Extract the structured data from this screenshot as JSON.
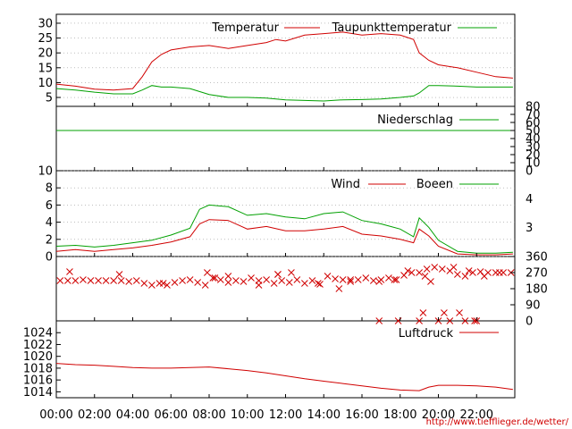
{
  "chart_data": [
    {
      "type": "line",
      "panel": "temperature",
      "title": "",
      "ylim": [
        2,
        33
      ],
      "y_ticks": [
        "5",
        "10",
        "15",
        "20",
        "25",
        "30"
      ],
      "y_tick_values": [
        5,
        10,
        15,
        20,
        25,
        30
      ],
      "legend_placement": "top-right",
      "grid": true,
      "x": [
        0,
        1,
        2,
        3,
        4,
        4.5,
        5,
        5.5,
        6,
        7,
        8,
        9,
        10,
        11,
        11.5,
        12,
        13,
        14,
        15,
        16,
        17,
        18,
        18.7,
        19,
        19.5,
        20,
        21,
        22,
        23,
        23.9
      ],
      "series": [
        {
          "name": "Temperatur",
          "color": "#d00000",
          "values": [
            9.5,
            8.8,
            7.8,
            7.5,
            8.0,
            12,
            17,
            19.5,
            21,
            22,
            22.5,
            21.5,
            22.5,
            23.5,
            24.5,
            24,
            26,
            26.5,
            27,
            26,
            26.5,
            26,
            24.5,
            20,
            17.5,
            16,
            15,
            13.5,
            12,
            11.5
          ]
        },
        {
          "name": "Taupunkttemperatur",
          "color": "#00a000",
          "values": [
            8,
            7.5,
            6.8,
            6.2,
            6.2,
            7.5,
            9,
            8.5,
            8.5,
            8,
            6,
            5,
            5,
            4.8,
            4.5,
            4.2,
            4,
            3.8,
            4.2,
            4.3,
            4.5,
            5,
            5.5,
            6.5,
            9,
            9,
            8.8,
            8.5,
            8.5,
            8.5
          ]
        }
      ]
    },
    {
      "type": "line",
      "panel": "precipitation",
      "title": "",
      "ylim": [
        0,
        80
      ],
      "y_ticks": [
        "0",
        "10",
        "20",
        "30",
        "40",
        "50",
        "60",
        "70",
        "80"
      ],
      "y_tick_values": [
        0,
        10,
        20,
        30,
        40,
        50,
        60,
        70,
        80
      ],
      "axis_side": "right",
      "legend_placement": "top-right",
      "x": [
        0,
        23.9
      ],
      "series": [
        {
          "name": "Niederschlag",
          "color": "#00a000",
          "values": [
            50,
            50
          ]
        }
      ]
    },
    {
      "type": "line",
      "panel": "wind",
      "title": "",
      "ylim": [
        0,
        10
      ],
      "y_ticks": [
        "0",
        "2",
        "4",
        "6",
        "8",
        "10"
      ],
      "y_tick_values": [
        0,
        2,
        4,
        6,
        8,
        10
      ],
      "right_ticks": [
        "3",
        "4"
      ],
      "right_tick_values": [
        3.4,
        6.7
      ],
      "legend_placement": "top-right",
      "grid": true,
      "x": [
        0,
        1,
        2,
        3,
        4,
        5,
        6,
        7,
        7.5,
        8,
        9,
        10,
        11,
        12,
        13,
        14,
        15,
        16,
        17,
        18,
        18.7,
        19,
        19.5,
        20,
        21,
        22,
        23,
        23.9
      ],
      "series": [
        {
          "name": "Wind",
          "color": "#d00000",
          "values": [
            0.6,
            0.8,
            0.6,
            0.8,
            1.0,
            1.3,
            1.7,
            2.3,
            3.8,
            4.3,
            4.2,
            3.2,
            3.5,
            3.0,
            3.0,
            3.2,
            3.5,
            2.6,
            2.4,
            2.0,
            1.6,
            3.2,
            2.4,
            1.2,
            0.3,
            0.2,
            0.2,
            0.3
          ]
        },
        {
          "name": "Boeen",
          "color": "#00a000",
          "values": [
            1.2,
            1.3,
            1.1,
            1.3,
            1.6,
            1.9,
            2.5,
            3.3,
            5.5,
            6.0,
            5.8,
            4.8,
            5.0,
            4.6,
            4.4,
            5.0,
            5.2,
            4.2,
            3.8,
            3.2,
            2.3,
            4.5,
            3.4,
            1.9,
            0.6,
            0.4,
            0.4,
            0.5
          ]
        }
      ]
    },
    {
      "type": "scatter",
      "panel": "wind-direction",
      "title": "",
      "ylim": [
        0,
        360
      ],
      "y_ticks": [
        "0",
        "90",
        "180",
        "270",
        "360"
      ],
      "y_tick_values": [
        0,
        90,
        180,
        270,
        360
      ],
      "axis_side": "right",
      "marker": "x",
      "color": "#d00000",
      "x": [
        0.2,
        0.6,
        1.0,
        1.4,
        1.8,
        2.2,
        2.6,
        3.0,
        3.4,
        3.8,
        4.2,
        4.6,
        5.0,
        5.4,
        5.8,
        6.2,
        6.6,
        7.0,
        7.4,
        7.8,
        8.2,
        8.6,
        9.0,
        9.4,
        9.8,
        10.2,
        10.6,
        11.0,
        11.4,
        11.8,
        12.2,
        12.6,
        13.0,
        13.4,
        13.8,
        14.2,
        14.6,
        15.0,
        15.4,
        15.8,
        16.2,
        16.6,
        17.0,
        17.4,
        17.8,
        18.2,
        18.6,
        19.0,
        19.4,
        19.8,
        20.2,
        20.6,
        21.0,
        21.4,
        21.8,
        22.2,
        22.6,
        23.0,
        23.4,
        23.8,
        7.9,
        9.0,
        11.6,
        12.3,
        14.8,
        16.9,
        18.4,
        19.3,
        20.8,
        21.6,
        23.2,
        0.7,
        3.3,
        5.6,
        8.3,
        10.6,
        13.7,
        15.4,
        17.7,
        19.6,
        22.4,
        11.6,
        16.9,
        17.9,
        19.0,
        20.0,
        20.6,
        21.4,
        21.9,
        22.0,
        19.2,
        20.3,
        21.1
      ],
      "values": [
        225,
        225,
        225,
        230,
        225,
        225,
        225,
        225,
        225,
        220,
        225,
        210,
        200,
        210,
        200,
        215,
        225,
        230,
        215,
        200,
        240,
        230,
        215,
        225,
        220,
        240,
        225,
        230,
        210,
        225,
        215,
        230,
        210,
        225,
        205,
        250,
        235,
        230,
        220,
        230,
        240,
        225,
        230,
        240,
        230,
        255,
        270,
        270,
        290,
        300,
        290,
        280,
        260,
        250,
        270,
        275,
        270,
        270,
        270,
        270,
        270,
        250,
        260,
        270,
        180,
        220,
        280,
        250,
        300,
        280,
        270,
        275,
        260,
        210,
        240,
        200,
        210,
        230,
        230,
        220,
        250,
        260,
        0,
        0,
        0,
        0,
        0,
        0,
        0,
        0,
        45,
        45,
        45
      ]
    },
    {
      "type": "line",
      "panel": "pressure",
      "title": "",
      "ylim": [
        1013,
        1026
      ],
      "y_ticks": [
        "1014",
        "1016",
        "1018",
        "1020",
        "1022",
        "1024"
      ],
      "y_tick_values": [
        1014,
        1016,
        1018,
        1020,
        1022,
        1024
      ],
      "legend_placement": "top-right",
      "x": [
        0,
        1,
        2,
        3,
        4,
        5,
        6,
        7,
        8,
        9,
        10,
        11,
        12,
        13,
        14,
        15,
        16,
        17,
        18,
        19,
        19.5,
        20,
        21,
        22,
        23,
        23.9
      ],
      "series": [
        {
          "name": "Luftdruck",
          "color": "#d00000",
          "values": [
            1018.8,
            1018.6,
            1018.5,
            1018.3,
            1018.1,
            1018.0,
            1018.0,
            1018.1,
            1018.2,
            1017.9,
            1017.6,
            1017.2,
            1016.7,
            1016.2,
            1015.8,
            1015.4,
            1015.0,
            1014.6,
            1014.3,
            1014.2,
            1014.8,
            1015.1,
            1015.1,
            1015.0,
            1014.8,
            1014.4
          ]
        }
      ]
    }
  ],
  "x_ticks": [
    "00:00",
    "02:00",
    "04:00",
    "06:00",
    "08:00",
    "10:00",
    "12:00",
    "14:00",
    "16:00",
    "18:00",
    "20:00",
    "22:00"
  ],
  "x_tick_values": [
    0,
    2,
    4,
    6,
    8,
    10,
    12,
    14,
    16,
    18,
    20,
    22
  ],
  "x_range": [
    0,
    24
  ],
  "source_url": "http://www.tiefflieger.de/wetter/",
  "colors": {
    "red": "#d00000",
    "green": "#00a000",
    "grid": "#999999"
  }
}
